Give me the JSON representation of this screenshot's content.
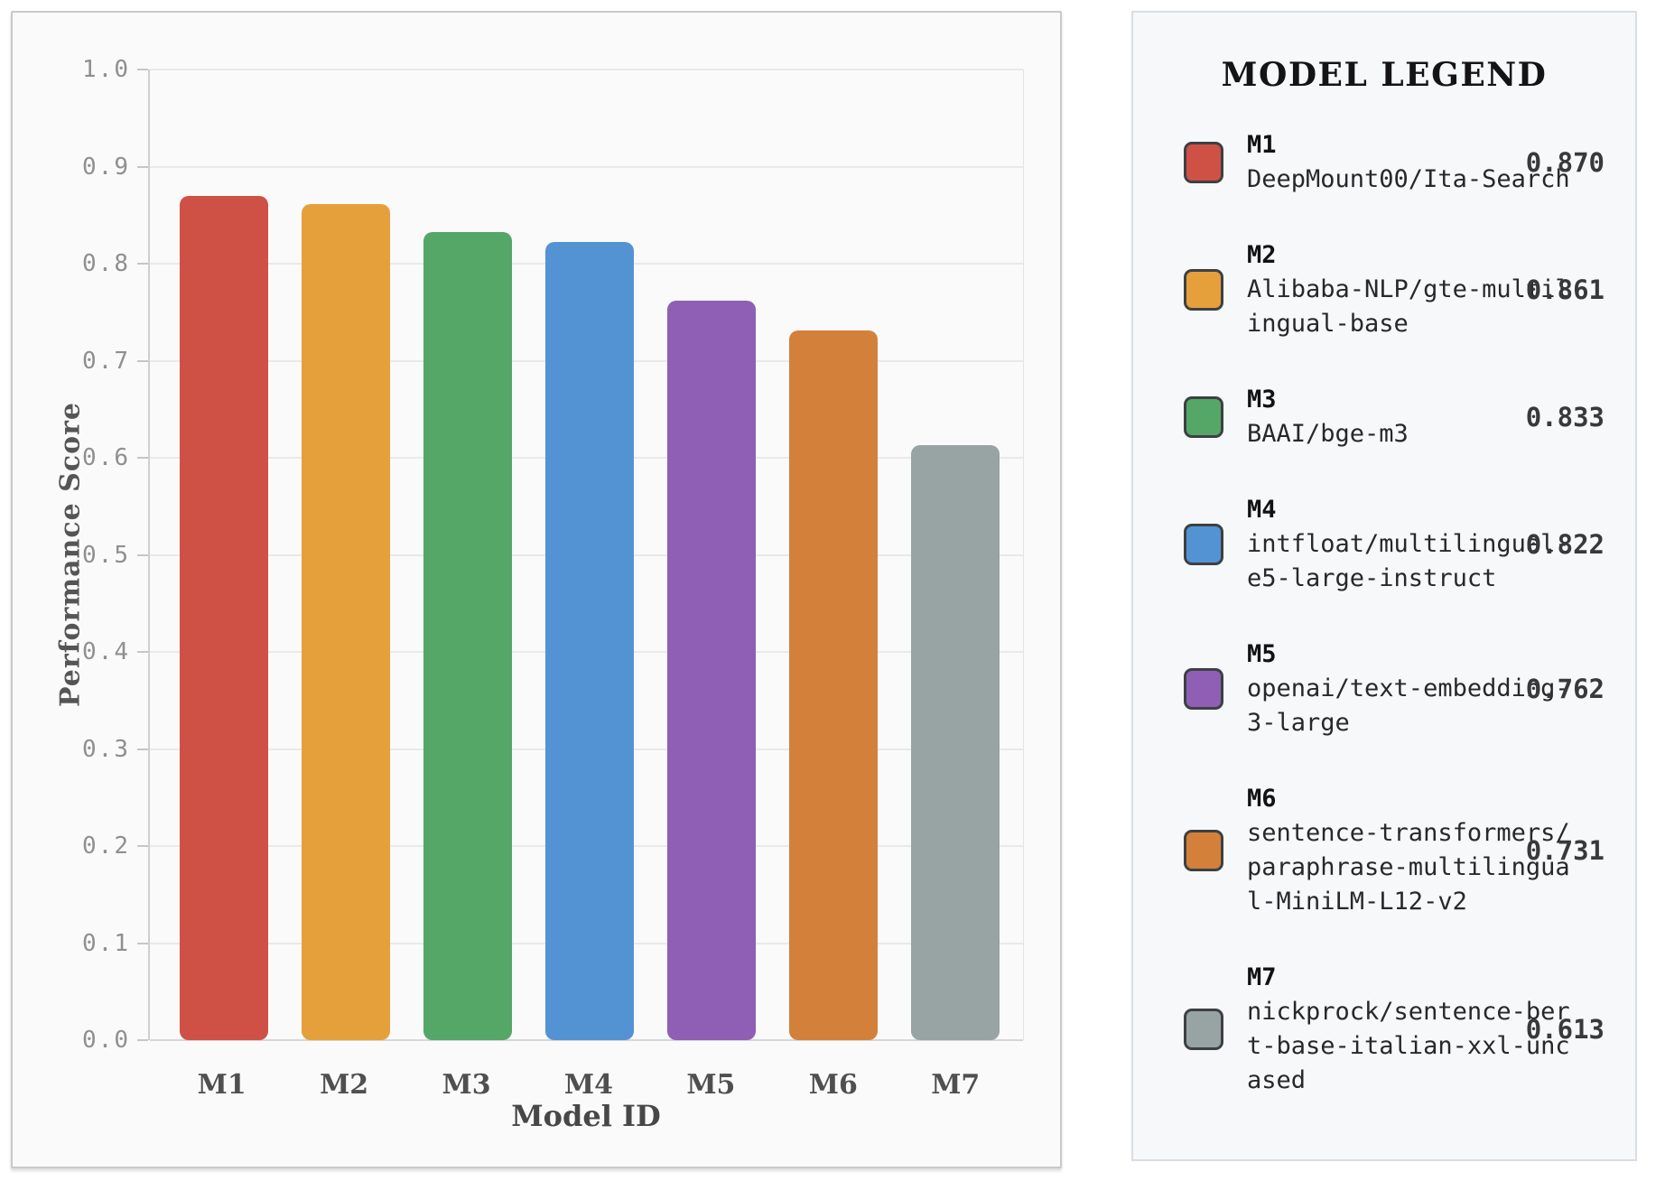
{
  "chart_data": {
    "type": "bar",
    "categories": [
      "M1",
      "M2",
      "M3",
      "M4",
      "M5",
      "M6",
      "M7"
    ],
    "values": [
      0.87,
      0.861,
      0.833,
      0.822,
      0.762,
      0.731,
      0.613
    ],
    "bar_colors": [
      "#cf5146",
      "#e5a03c",
      "#54a766",
      "#5493d3",
      "#8e5fb5",
      "#d3813a",
      "#98a4a4"
    ],
    "xlabel": "Model ID",
    "ylabel": "Performance Score",
    "ylim": [
      0.0,
      1.0
    ],
    "ytick_labels": [
      "1.0",
      "0.9",
      "0.8",
      "0.7",
      "0.6",
      "0.5",
      "0.4",
      "0.3",
      "0.2",
      "0.1",
      "0.0"
    ],
    "grid": "horizontal",
    "legend_position": "right-panel"
  },
  "legend": {
    "title": "MODEL LEGEND",
    "entries": [
      {
        "id": "M1",
        "name": "DeepMount00/Ita-Search",
        "score": "0.870",
        "color": "#cf5146"
      },
      {
        "id": "M2",
        "name": "Alibaba-NLP/gte-multilingual-base",
        "score": "0.861",
        "color": "#e5a03c"
      },
      {
        "id": "M3",
        "name": "BAAI/bge-m3",
        "score": "0.833",
        "color": "#54a766"
      },
      {
        "id": "M4",
        "name": "intfloat/multilingual-e5-large-instruct",
        "score": "0.822",
        "color": "#5493d3"
      },
      {
        "id": "M5",
        "name": "openai/text-embedding-3-large",
        "score": "0.762",
        "color": "#8e5fb5"
      },
      {
        "id": "M6",
        "name": "sentence-transformers/paraphrase-multilingual-MiniLM-L12-v2",
        "score": "0.731",
        "color": "#d3813a"
      },
      {
        "id": "M7",
        "name": "nickprock/sentence-bert-base-italian-xxl-uncased",
        "score": "0.613",
        "color": "#98a4a4"
      }
    ]
  }
}
